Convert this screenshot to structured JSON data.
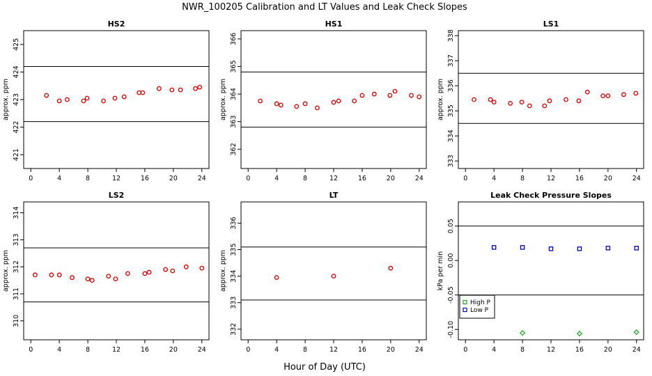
{
  "figure": {
    "title": "NWR_100205  Calibration and LT Values and Leak Check Slopes",
    "xlabel": "Hour of Day (UTC)"
  },
  "chart_data": [
    {
      "type": "scatter",
      "title": "HS2",
      "ylabel": "approx. ppm",
      "xlim": [
        -1,
        25
      ],
      "ylim": [
        420.5,
        425.5
      ],
      "xticks": [
        0,
        4,
        8,
        12,
        16,
        20,
        24
      ],
      "yticks": [
        421,
        422,
        423,
        424,
        425
      ],
      "hlines": [
        424.2,
        422.2
      ],
      "color": "#dd0000",
      "marker": "circle",
      "x": [
        2.2,
        4.0,
        5.1,
        7.4,
        7.9,
        10.2,
        11.8,
        13.1,
        15.2,
        15.7,
        18.0,
        19.8,
        21.0,
        23.1,
        23.7
      ],
      "y": [
        423.15,
        422.95,
        423.0,
        422.95,
        423.05,
        422.95,
        423.05,
        423.1,
        423.25,
        423.25,
        423.4,
        423.35,
        423.35,
        423.4,
        423.45
      ]
    },
    {
      "type": "scatter",
      "title": "HS1",
      "ylabel": "approx. ppm",
      "xlim": [
        -1,
        25
      ],
      "ylim": [
        361.3,
        366.3
      ],
      "xticks": [
        0,
        4,
        8,
        12,
        16,
        20,
        24
      ],
      "yticks": [
        362,
        363,
        364,
        365,
        366
      ],
      "hlines": [
        364.8,
        362.8
      ],
      "color": "#dd0000",
      "marker": "circle",
      "x": [
        1.7,
        4.0,
        4.6,
        6.8,
        8.0,
        9.7,
        12.0,
        12.7,
        14.9,
        16.0,
        17.7,
        19.9,
        20.6,
        22.9,
        24.0
      ],
      "y": [
        363.75,
        363.65,
        363.6,
        363.55,
        363.65,
        363.5,
        363.7,
        363.75,
        363.75,
        363.95,
        364.0,
        363.95,
        364.1,
        363.95,
        363.9
      ]
    },
    {
      "type": "scatter",
      "title": "LS1",
      "ylabel": "approx. ppm",
      "xlim": [
        -1,
        25
      ],
      "ylim": [
        332.7,
        338.2
      ],
      "xticks": [
        0,
        4,
        8,
        12,
        16,
        20,
        24
      ],
      "yticks": [
        333,
        334,
        335,
        336,
        337,
        338
      ],
      "hlines": [
        336.5,
        334.5
      ],
      "color": "#dd0000",
      "marker": "circle",
      "x": [
        1.2,
        3.5,
        4.0,
        6.3,
        7.9,
        9.0,
        11.1,
        11.8,
        14.1,
        15.9,
        17.1,
        19.3,
        20.0,
        22.2,
        23.9
      ],
      "y": [
        335.45,
        335.45,
        335.35,
        335.3,
        335.35,
        335.2,
        335.2,
        335.4,
        335.45,
        335.4,
        335.75,
        335.6,
        335.6,
        335.65,
        335.7
      ]
    },
    {
      "type": "scatter",
      "title": "LS2",
      "ylabel": "approx. ppm",
      "xlim": [
        -1,
        25
      ],
      "ylim": [
        309.3,
        314.4
      ],
      "xticks": [
        0,
        4,
        8,
        12,
        16,
        20,
        24
      ],
      "yticks": [
        310,
        311,
        312,
        313,
        314
      ],
      "hlines": [
        312.7,
        310.7
      ],
      "color": "#dd0000",
      "marker": "circle",
      "x": [
        0.6,
        2.9,
        4.0,
        5.8,
        8.0,
        8.6,
        10.9,
        11.9,
        13.6,
        16.0,
        16.6,
        18.9,
        19.9,
        21.8,
        24.0
      ],
      "y": [
        311.7,
        311.7,
        311.7,
        311.6,
        311.55,
        311.5,
        311.65,
        311.55,
        311.75,
        311.75,
        311.8,
        311.9,
        311.85,
        312.0,
        311.95
      ]
    },
    {
      "type": "scatter",
      "title": "LT",
      "ylabel": "approx. ppm",
      "xlim": [
        -1,
        25
      ],
      "ylim": [
        331.6,
        336.8
      ],
      "xticks": [
        0,
        4,
        8,
        12,
        16,
        20,
        24
      ],
      "yticks": [
        332,
        333,
        334,
        335,
        336
      ],
      "hlines": [
        335.1,
        333.1
      ],
      "color": "#dd0000",
      "marker": "circle",
      "x": [
        4.0,
        12.0,
        20.0
      ],
      "y": [
        333.95,
        334.0,
        334.3
      ]
    },
    {
      "type": "scatter",
      "title": "Leak Check Pressure Slopes",
      "ylabel": "kPa per min",
      "xlim": [
        -1,
        25
      ],
      "ylim": [
        -0.115,
        0.085
      ],
      "xticks": [
        0,
        4,
        8,
        12,
        16,
        20,
        24
      ],
      "yticks": [
        -0.1,
        -0.05,
        0.0,
        0.05
      ],
      "ytick_labels": [
        "-0.10",
        "-0.05",
        "0.00",
        "0.05"
      ],
      "hlines": [
        0.05,
        -0.05
      ],
      "series": [
        {
          "name": "High P",
          "color": "#22aa22",
          "marker": "diamond",
          "x": [
            8.0,
            16.0,
            24.0
          ],
          "y": [
            -0.105,
            -0.106,
            -0.104
          ]
        },
        {
          "name": "Low P",
          "color": "#0000cc",
          "marker": "square",
          "x": [
            4.0,
            8.0,
            12.0,
            16.0,
            20.0,
            24.0
          ],
          "y": [
            0.019,
            0.019,
            0.017,
            0.017,
            0.018,
            0.018
          ]
        }
      ],
      "legend": {
        "position": "lower-left",
        "entries": [
          "High P",
          "Low P"
        ]
      }
    }
  ]
}
